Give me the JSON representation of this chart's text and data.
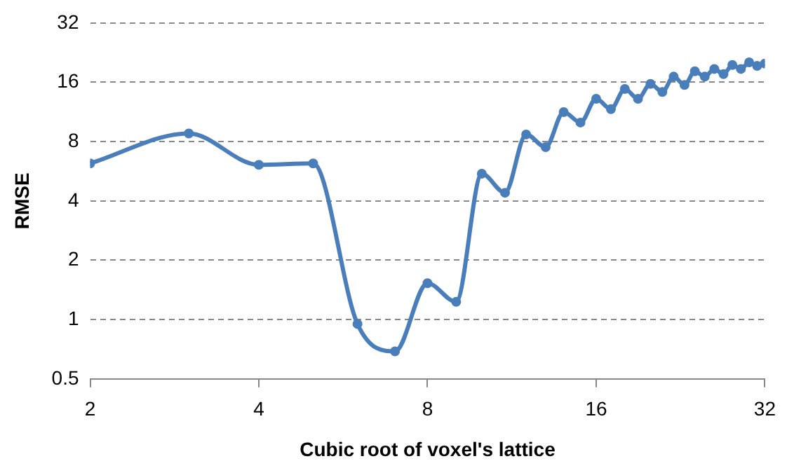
{
  "chart_data": {
    "type": "line",
    "xlabel": "Cubic root of voxel's lattice",
    "ylabel": "RMSE",
    "x": [
      2,
      3,
      4,
      5,
      6,
      7,
      8,
      9,
      10,
      11,
      12,
      13,
      14,
      15,
      16,
      17,
      18,
      19,
      20,
      21,
      22,
      23,
      24,
      25,
      26,
      27,
      28,
      29,
      30,
      31,
      32
    ],
    "series": [
      {
        "color": "#4a7ebb",
        "values": [
          6.2,
          8.8,
          6.1,
          6.2,
          0.95,
          0.69,
          1.53,
          1.23,
          5.5,
          4.4,
          8.7,
          7.5,
          11.3,
          10,
          13.2,
          11.7,
          14.8,
          13.2,
          15.7,
          14.3,
          17.1,
          15.5,
          18.2,
          17.1,
          18.7,
          17.6,
          19.6,
          18.7,
          20.2,
          19.4,
          19.9
        ]
      }
    ],
    "log": "xy",
    "xlim": [
      2,
      32
    ],
    "xticks": [
      2,
      4,
      8,
      16,
      32
    ],
    "ylim": [
      0.5,
      32
    ],
    "yticks": [
      0.5,
      1,
      2,
      4,
      8,
      16,
      32
    ],
    "grid": "y",
    "legend": false,
    "marker": "circle",
    "line_style": "solid"
  }
}
